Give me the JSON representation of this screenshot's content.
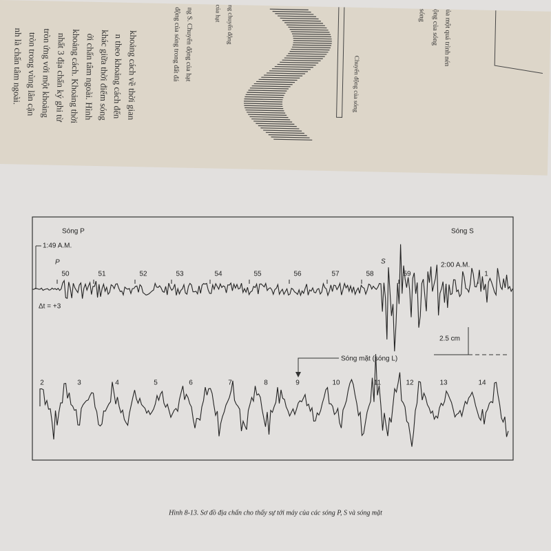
{
  "top_page": {
    "text_lines": [
      "khoảng cách về thời gian",
      "n theo khoảng cách đến",
      "khác giữa thời điểm sóng",
      "ới chấn tâm ngoài. Hình",
      "khoảng cách. Khoảng thời",
      "nhất 3 địa chấn ký ghi từ",
      "tròn ứng với một khoảng",
      "tròn trong vùng lân cận",
      "nh là chấn tâm ngoài."
    ],
    "figure_caption_lines": [
      "ng S. Chuyển động của hạt",
      "động của sóng trong đất đá"
    ],
    "figure_labels": [
      "ng chuyển động",
      "của hạt",
      "Chuyển động của sóng"
    ],
    "right_lines": [
      "ủa một quá trình nén",
      "ộng của sóng",
      "sóng"
    ]
  },
  "figure": {
    "p_wave": "Sóng P",
    "s_wave": "Sóng S",
    "start_time": "1:49 A.M.",
    "p_marker": "P",
    "s_marker": "S",
    "time_2am": "2:00 A.M.",
    "delta_t": "Δt = +3",
    "scale": "2.5 cm",
    "surface_wave": "Sóng mặt (sóng L)",
    "row1_minutes": [
      50,
      51,
      52,
      53,
      54,
      55,
      56,
      57,
      58,
      59,
      1
    ],
    "row2_minutes": [
      2,
      3,
      4,
      5,
      6,
      7,
      8,
      9,
      10,
      11,
      12,
      13,
      14
    ]
  },
  "caption": "Hình 8-13. Sơ đồ địa chấn cho thấy sự tới máy của các sóng P, S và sóng mặt"
}
